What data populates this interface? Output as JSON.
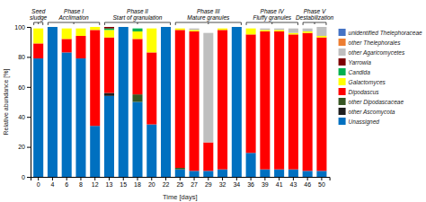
{
  "chart_data": {
    "type": "bar",
    "stacked": true,
    "xlabel": "Time [days]",
    "ylabel": "Relative abundance [%]",
    "categories": [
      "0",
      "4",
      "6",
      "8",
      "12",
      "13",
      "15",
      "18",
      "20",
      "22",
      "25",
      "27",
      "29",
      "32",
      "34",
      "36",
      "39",
      "41",
      "43",
      "46",
      "50"
    ],
    "series": [
      {
        "name": "Unassigned",
        "color": "#0070C0",
        "values": [
          79,
          100,
          83,
          79,
          34,
          54,
          100,
          50,
          35,
          100,
          5,
          4,
          4,
          5,
          100,
          16,
          5,
          5,
          5,
          4,
          4
        ]
      },
      {
        "name": "other Ascomycota",
        "color": "#1F1F1F",
        "values": [
          0,
          0,
          0,
          0,
          0,
          2,
          0,
          0,
          0,
          0,
          0,
          0,
          0,
          0,
          0,
          0,
          0,
          0,
          0,
          0,
          0
        ]
      },
      {
        "name": "other Dipodascaceae",
        "color": "#375623",
        "values": [
          0,
          0,
          0,
          0,
          0,
          0,
          0,
          5,
          0,
          0,
          1,
          0,
          0,
          0,
          0,
          0,
          0,
          0,
          0,
          0,
          0
        ]
      },
      {
        "name": "Dipodascus",
        "color": "#FF0000",
        "values": [
          10,
          0,
          9,
          15,
          64,
          37,
          0,
          37,
          48,
          0,
          92,
          93,
          19,
          93,
          0,
          79,
          92,
          92,
          90,
          92,
          89
        ]
      },
      {
        "name": "Galactomyces",
        "color": "#FFFF00",
        "values": [
          10,
          0,
          7,
          5,
          2,
          5,
          0,
          5,
          16,
          0,
          1,
          1,
          0,
          1,
          0,
          4,
          1,
          1,
          1,
          1,
          1
        ]
      },
      {
        "name": "Candida",
        "color": "#00B050",
        "values": [
          0,
          0,
          0,
          0,
          0,
          1,
          0,
          2,
          0,
          0,
          0,
          0,
          0,
          0,
          0,
          0,
          0,
          0,
          0,
          0,
          0
        ]
      },
      {
        "name": "Yarrowia",
        "color": "#7F0000",
        "values": [
          0,
          0,
          0,
          0,
          0,
          1,
          0,
          0,
          0,
          0,
          0,
          0,
          0,
          0,
          0,
          0,
          0,
          0,
          0,
          0,
          0
        ]
      },
      {
        "name": "other Agaricomycetes",
        "color": "#BFBFBF",
        "values": [
          0,
          0,
          0,
          0,
          0,
          0,
          0,
          0,
          0,
          0,
          0,
          1,
          73,
          0,
          0,
          0,
          1,
          1,
          3,
          2,
          6
        ]
      },
      {
        "name": "other Thelephorales",
        "color": "#ED7D31",
        "values": [
          0,
          0,
          0,
          0,
          0,
          0,
          0,
          0,
          0,
          0,
          0,
          0,
          0,
          0,
          0,
          0,
          0,
          0,
          0,
          0,
          0
        ]
      },
      {
        "name": "unidentified Thelephoraceae",
        "color": "#4472C4",
        "values": [
          0,
          0,
          0,
          0,
          0,
          0,
          0,
          0,
          0,
          0,
          0,
          0,
          0,
          0,
          0,
          0,
          0,
          0,
          0,
          0,
          0
        ]
      }
    ],
    "annotations": [
      {
        "text": [
          "Seed",
          "sludge"
        ],
        "start": "0",
        "end": "0"
      },
      {
        "text": [
          "Phase I",
          "Acclimation"
        ],
        "start": "4",
        "end": "12"
      },
      {
        "text": [
          "Phase II",
          "Start of granulation"
        ],
        "start": "13",
        "end": "22"
      },
      {
        "text": [
          "Phase III",
          "Mature granules"
        ],
        "start": "25",
        "end": "34"
      },
      {
        "text": [
          "Phase IV",
          "Fluffy granules"
        ],
        "start": "36",
        "end": "43"
      },
      {
        "text": [
          "Phase V",
          "Destabilization"
        ],
        "start": "46",
        "end": "50"
      }
    ],
    "ylim": [
      0,
      100
    ],
    "yticks": [
      0,
      20,
      40,
      60,
      80,
      100
    ],
    "grid": false,
    "legend": "right"
  }
}
